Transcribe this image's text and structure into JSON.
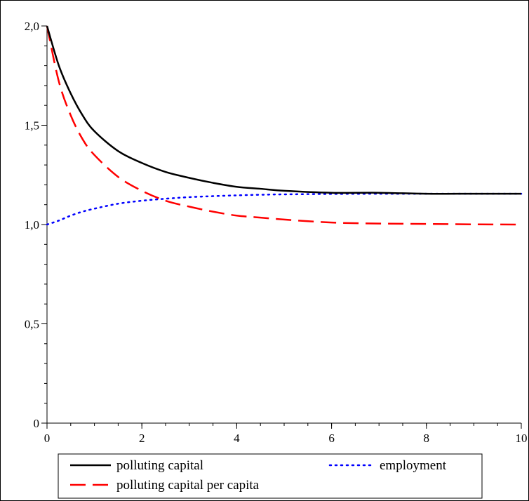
{
  "chart_data": {
    "type": "line",
    "title": "",
    "xlabel": "",
    "ylabel": "",
    "xlim": [
      0,
      10
    ],
    "ylim": [
      0,
      2.0
    ],
    "x_ticks": [
      0,
      2,
      4,
      6,
      8,
      10
    ],
    "x_tick_labels": [
      "0",
      "2",
      "4",
      "6",
      "8",
      "10"
    ],
    "y_ticks": [
      0,
      0.5,
      1.0,
      1.5,
      2.0
    ],
    "y_tick_labels": [
      "0",
      "0,5",
      "1,0",
      "1,5",
      "2,0"
    ],
    "grid": false,
    "legend_position": "bottom",
    "x": [
      0,
      0.25,
      0.5,
      0.75,
      1,
      1.5,
      2,
      2.5,
      3,
      3.5,
      4,
      4.5,
      5,
      6,
      7,
      8,
      9,
      10
    ],
    "series": [
      {
        "name": "polluting capital",
        "color": "#000000",
        "dash": "solid",
        "values": [
          2.0,
          1.8,
          1.66,
          1.55,
          1.47,
          1.37,
          1.31,
          1.265,
          1.235,
          1.21,
          1.19,
          1.18,
          1.17,
          1.16,
          1.16,
          1.155,
          1.155,
          1.155
        ]
      },
      {
        "name": "employment",
        "color": "#0000ff",
        "dash": "dotted",
        "values": [
          1.0,
          1.02,
          1.045,
          1.065,
          1.08,
          1.105,
          1.12,
          1.13,
          1.138,
          1.143,
          1.147,
          1.15,
          1.152,
          1.154,
          1.155,
          1.155,
          1.155,
          1.155
        ]
      },
      {
        "name": "polluting capital per capita",
        "color": "#ff0000",
        "dash": "dashed",
        "values": [
          2.0,
          1.72,
          1.55,
          1.43,
          1.35,
          1.24,
          1.17,
          1.12,
          1.09,
          1.065,
          1.045,
          1.035,
          1.025,
          1.01,
          1.005,
          1.003,
          1.001,
          1.0
        ]
      }
    ]
  }
}
